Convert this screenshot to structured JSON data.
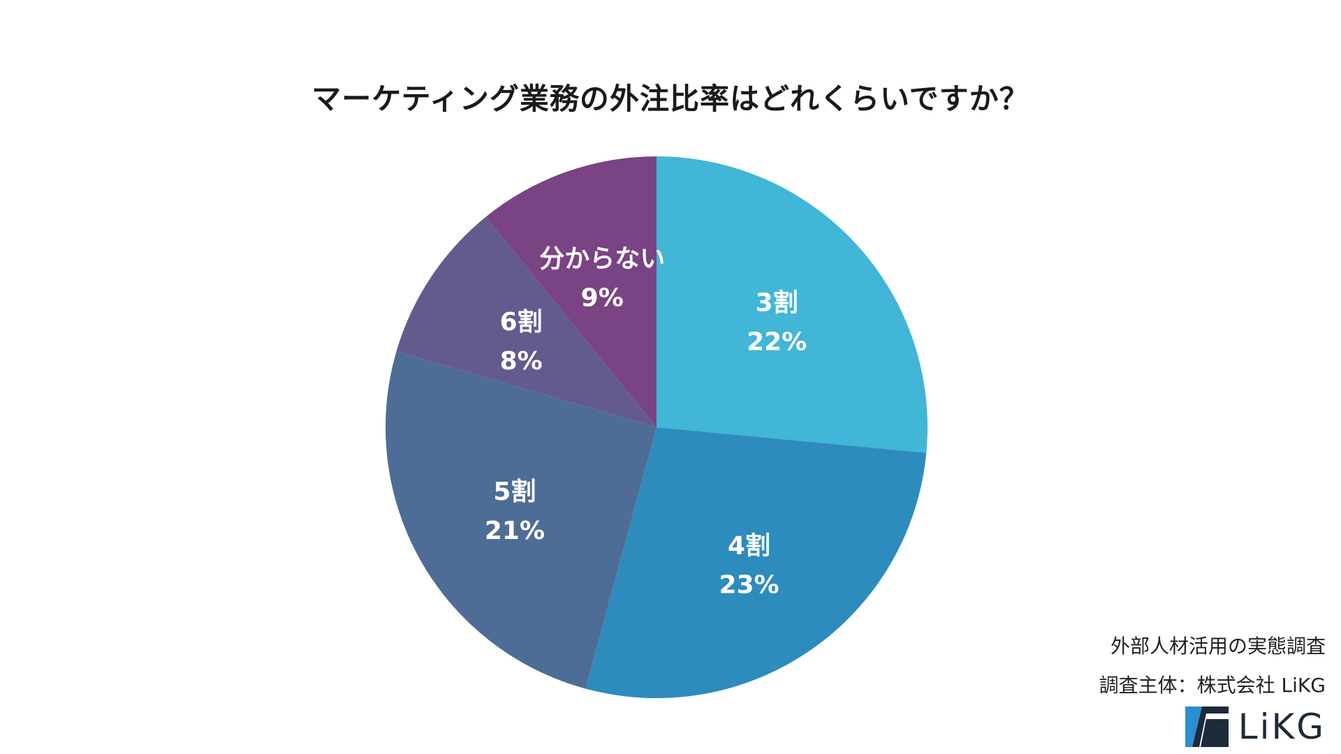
{
  "chart_data": {
    "type": "pie",
    "title": "マーケティング業務の外注比率はどれくらいですか？",
    "slices": [
      {
        "label": "3割",
        "value": 22,
        "value_label": "22%",
        "color": "#41b6d6"
      },
      {
        "label": "4割",
        "value": 23,
        "value_label": "23%",
        "color": "#2d8bbd"
      },
      {
        "label": "5割",
        "value": 21,
        "value_label": "21%",
        "color": "#4e6d96"
      },
      {
        "label": "6割",
        "value": 8,
        "value_label": "8%",
        "color": "#635b8e"
      },
      {
        "label": "分からない",
        "value": 9,
        "value_label": "9%",
        "color": "#7a4384"
      }
    ],
    "start": "12 o'clock",
    "direction": "clockwise",
    "legend": "none"
  },
  "footer": {
    "survey": "外部人材活用の実態調査",
    "sponsor": "調査主体：株式会社 LiKG",
    "logo_text": "LiKG",
    "logo_icon": "likg-logo-icon"
  }
}
